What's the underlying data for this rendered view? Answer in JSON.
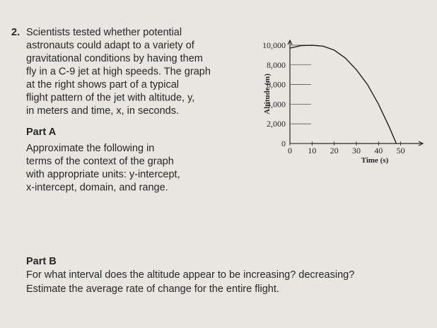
{
  "number": "2.",
  "problem_lines": [
    "Scientists tested whether potential",
    "astronauts could adapt to a variety of",
    "gravitational conditions by having them",
    "fly in a C-9 jet at high speeds. The graph",
    "at the right shows part of a typical",
    "flight pattern of the jet with altitude, y,",
    "in meters and time, x, in seconds."
  ],
  "part_a": {
    "heading": "Part A",
    "lines": [
      "Approximate the following in",
      "terms of the context of the graph",
      "with appropriate units: y-intercept,",
      "x-intercept, domain, and range."
    ]
  },
  "part_b": {
    "heading": "Part B",
    "lines": [
      "For what interval does the altitude appear to be increasing? decreasing?",
      "Estimate the average rate of change for the entire flight."
    ]
  },
  "chart_data": {
    "type": "line",
    "x_label": "Time (s)",
    "y_label": "Altitude (m)",
    "x": [
      0,
      5,
      10,
      15,
      20,
      25,
      30,
      35,
      40,
      45,
      48
    ],
    "values": [
      9700,
      9950,
      10000,
      9900,
      9500,
      8700,
      7500,
      6000,
      4000,
      1600,
      0
    ],
    "color": "#1f1f1f",
    "xlim": [
      0,
      60
    ],
    "ylim": [
      0,
      10500
    ],
    "xticks": [
      0,
      10,
      20,
      30,
      40,
      50
    ],
    "yticks": [
      0,
      {
        "value": 2000,
        "label": "2,000"
      },
      {
        "value": 4000,
        "label": "4,000"
      },
      {
        "value": 6000,
        "label": "6,000"
      },
      {
        "value": 8000,
        "label": "8,000"
      },
      {
        "value": 10000,
        "label": "10,000"
      }
    ]
  }
}
